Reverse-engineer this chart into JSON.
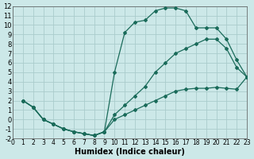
{
  "xlabel": "Humidex (Indice chaleur)",
  "bg_color": "#cce8e8",
  "grid_color": "#aacccc",
  "line_color": "#1a6b5a",
  "xlim": [
    0,
    23
  ],
  "ylim": [
    -2,
    12
  ],
  "xticks": [
    0,
    1,
    2,
    3,
    4,
    5,
    6,
    7,
    8,
    9,
    10,
    11,
    12,
    13,
    14,
    15,
    16,
    17,
    18,
    19,
    20,
    21,
    22,
    23
  ],
  "yticks": [
    -2,
    -1,
    0,
    1,
    2,
    3,
    4,
    5,
    6,
    7,
    8,
    9,
    10,
    11,
    12
  ],
  "curve1_x": [
    1,
    2,
    3,
    4,
    5,
    6,
    7,
    8,
    9,
    10,
    11,
    12,
    13,
    14,
    15,
    16,
    17,
    18,
    19,
    20,
    21,
    22,
    23
  ],
  "curve1_y": [
    2,
    1.3,
    0.0,
    -0.5,
    -1.0,
    -1.3,
    -1.5,
    -1.7,
    -1.3,
    5.0,
    9.2,
    10.3,
    10.5,
    11.5,
    11.8,
    11.8,
    11.5,
    9.7,
    9.7,
    9.7,
    8.5,
    6.3,
    4.5
  ],
  "curve2_x": [
    1,
    2,
    3,
    4,
    5,
    6,
    7,
    8,
    9,
    10,
    11,
    12,
    13,
    14,
    15,
    16,
    17,
    18,
    19,
    20,
    21,
    22,
    23
  ],
  "curve2_y": [
    2,
    1.3,
    0.0,
    -0.5,
    -1.0,
    -1.3,
    -1.5,
    -1.7,
    -1.3,
    0.5,
    1.5,
    2.5,
    3.5,
    5.0,
    6.0,
    7.0,
    7.5,
    8.0,
    8.5,
    8.5,
    7.5,
    5.5,
    4.5
  ],
  "curve3_x": [
    1,
    2,
    3,
    4,
    5,
    6,
    7,
    8,
    9,
    10,
    11,
    12,
    13,
    14,
    15,
    16,
    17,
    18,
    19,
    20,
    21,
    22,
    23
  ],
  "curve3_y": [
    2,
    1.3,
    0.0,
    -0.5,
    -1.0,
    -1.3,
    -1.5,
    -1.7,
    -1.3,
    0.0,
    0.5,
    1.0,
    1.5,
    2.0,
    2.5,
    3.0,
    3.2,
    3.3,
    3.3,
    3.4,
    3.3,
    3.2,
    4.5
  ],
  "xtick_fontsize": 5.5,
  "ytick_fontsize": 6.0,
  "xlabel_fontsize": 7.0
}
